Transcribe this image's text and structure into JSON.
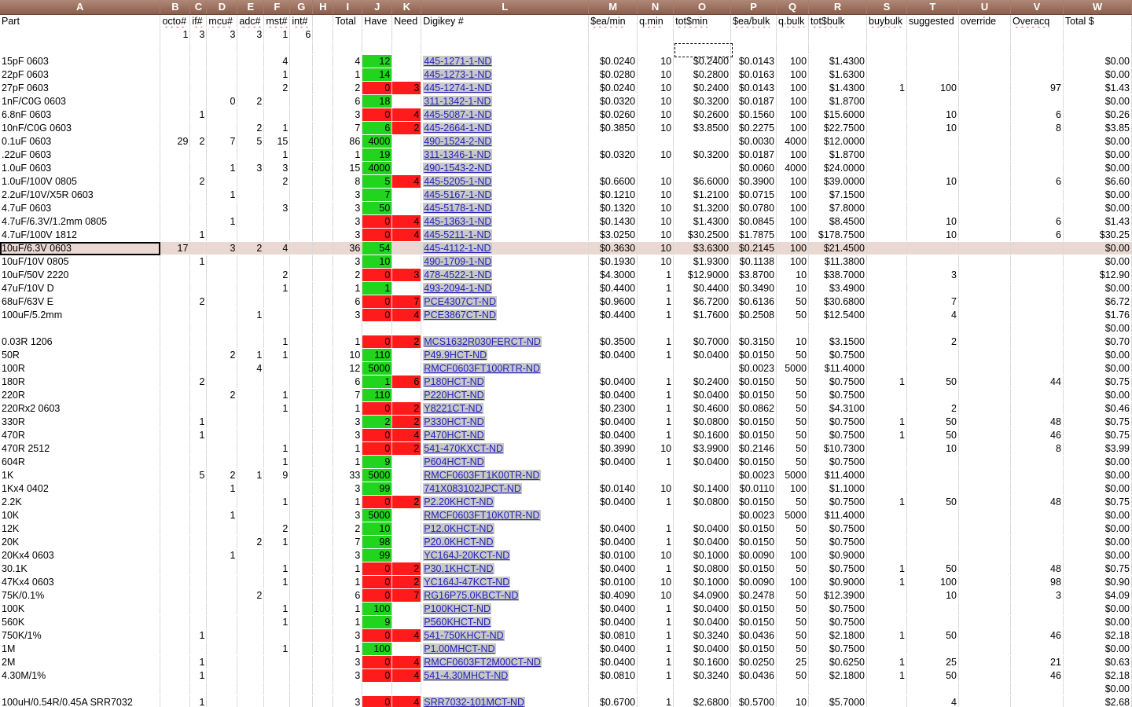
{
  "columns": [
    "A",
    "B",
    "C",
    "D",
    "E",
    "F",
    "G",
    "H",
    "I",
    "J",
    "K",
    "L",
    "M",
    "N",
    "O",
    "P",
    "Q",
    "R",
    "S",
    "T",
    "U",
    "V",
    "W"
  ],
  "header_row": [
    "Part",
    "octo#",
    "if#",
    "mcu#",
    "adc#",
    "mst#",
    "int#",
    "",
    "Total",
    "Have",
    "Need",
    "Digikey #",
    "$ea/min",
    "q.min",
    "tot$min",
    "$ea/bulk",
    "q.bulk",
    "tot$bulk",
    "buybulk",
    "suggested",
    "override",
    "Overacq",
    "Total $"
  ],
  "counts_row": [
    "",
    "1",
    "3",
    "3",
    "3",
    "1",
    "6",
    "",
    "",
    "",
    "",
    "",
    "",
    "",
    "",
    "",
    "",
    "",
    "",
    "",
    "",
    "",
    ""
  ],
  "blank_row_total": "",
  "rows": [
    [
      "15pF 0603",
      "",
      "",
      "",
      "",
      "4",
      "",
      "",
      "4",
      "12",
      "",
      "445-1271-1-ND",
      "$0.0240",
      "10",
      "$0.2400",
      "$0.0143",
      "100",
      "$1.4300",
      "",
      "",
      "",
      "",
      "$0.00"
    ],
    [
      "22pF 0603",
      "",
      "",
      "",
      "",
      "1",
      "",
      "",
      "1",
      "14",
      "",
      "445-1273-1-ND",
      "$0.0280",
      "10",
      "$0.2800",
      "$0.0163",
      "100",
      "$1.6300",
      "",
      "",
      "",
      "",
      "$0.00"
    ],
    [
      "27pF 0603",
      "",
      "",
      "",
      "",
      "2",
      "",
      "",
      "2",
      "0",
      "3",
      "445-1274-1-ND",
      "$0.0240",
      "10",
      "$0.2400",
      "$0.0143",
      "100",
      "$1.4300",
      "1",
      "100",
      "",
      "97",
      "$1.43"
    ],
    [
      "1nF/C0G 0603",
      "",
      "",
      "0",
      "2",
      "",
      "",
      "",
      "6",
      "18",
      "",
      "311-1342-1-ND",
      "$0.0320",
      "10",
      "$0.3200",
      "$0.0187",
      "100",
      "$1.8700",
      "",
      "",
      "",
      "",
      "$0.00"
    ],
    [
      "6.8nF 0603",
      "",
      "1",
      "",
      "",
      "",
      "",
      "",
      "3",
      "0",
      "4",
      "445-5087-1-ND",
      "$0.0260",
      "10",
      "$0.2600",
      "$0.1560",
      "100",
      "$15.6000",
      "",
      "10",
      "",
      "6",
      "$0.26"
    ],
    [
      "10nF/C0G 0603",
      "",
      "",
      "",
      "2",
      "1",
      "",
      "",
      "7",
      "6",
      "2",
      "445-2664-1-ND",
      "$0.3850",
      "10",
      "$3.8500",
      "$0.2275",
      "100",
      "$22.7500",
      "",
      "10",
      "",
      "8",
      "$3.85"
    ],
    [
      "0.1uF 0603",
      "29",
      "2",
      "7",
      "5",
      "15",
      "",
      "",
      "86",
      "4000",
      "",
      "490-1524-2-ND",
      "",
      "",
      "",
      "$0.0030",
      "4000",
      "$12.0000",
      "",
      "",
      "",
      "",
      "$0.00"
    ],
    [
      ".22uF 0603",
      "",
      "",
      "",
      "",
      "1",
      "",
      "",
      "1",
      "19",
      "",
      "311-1346-1-ND",
      "$0.0320",
      "10",
      "$0.3200",
      "$0.0187",
      "100",
      "$1.8700",
      "",
      "",
      "",
      "",
      "$0.00"
    ],
    [
      "1.0uF 0603",
      "",
      "",
      "1",
      "3",
      "3",
      "",
      "",
      "15",
      "4000",
      "",
      "490-1543-2-ND",
      "",
      "",
      "",
      "$0.0060",
      "4000",
      "$24.0000",
      "",
      "",
      "",
      "",
      "$0.00"
    ],
    [
      "1.0uF/100V 0805",
      "",
      "2",
      "",
      "",
      "2",
      "",
      "",
      "8",
      "5",
      "4",
      "445-5205-1-ND",
      "$0.6600",
      "10",
      "$6.6000",
      "$0.3900",
      "100",
      "$39.0000",
      "",
      "10",
      "",
      "6",
      "$6.60"
    ],
    [
      "2.2uF/10V/X5R 0603",
      "",
      "",
      "1",
      "",
      "",
      "",
      "",
      "3",
      "7",
      "",
      "445-5167-1-ND",
      "$0.1210",
      "10",
      "$1.2100",
      "$0.0715",
      "100",
      "$7.1500",
      "",
      "",
      "",
      "",
      "$0.00"
    ],
    [
      "4.7uF 0603",
      "",
      "",
      "",
      "",
      "3",
      "",
      "",
      "3",
      "50",
      "",
      "445-5178-1-ND",
      "$0.1320",
      "10",
      "$1.3200",
      "$0.0780",
      "100",
      "$7.8000",
      "",
      "",
      "",
      "",
      "$0.00"
    ],
    [
      "4.7uF/6.3V/1.2mm 0805",
      "",
      "",
      "1",
      "",
      "",
      "",
      "",
      "3",
      "0",
      "4",
      "445-1363-1-ND",
      "$0.1430",
      "10",
      "$1.4300",
      "$0.0845",
      "100",
      "$8.4500",
      "",
      "10",
      "",
      "6",
      "$1.43"
    ],
    [
      "4.7uF/100V 1812",
      "",
      "1",
      "",
      "",
      "",
      "",
      "",
      "3",
      "0",
      "4",
      "445-5211-1-ND",
      "$3.0250",
      "10",
      "$30.2500",
      "$1.7875",
      "100",
      "$178.7500",
      "",
      "10",
      "",
      "6",
      "$30.25"
    ],
    [
      "10uF/6.3V 0603",
      "17",
      "",
      "3",
      "2",
      "4",
      "",
      "",
      "36",
      "54",
      "",
      "445-4112-1-ND",
      "$0.3630",
      "10",
      "$3.6300",
      "$0.2145",
      "100",
      "$21.4500",
      "",
      "",
      "",
      "",
      "$0.00"
    ],
    [
      "10uF/10V 0805",
      "",
      "1",
      "",
      "",
      "",
      "",
      "",
      "3",
      "10",
      "",
      "490-1709-1-ND",
      "$0.1930",
      "10",
      "$1.9300",
      "$0.1138",
      "100",
      "$11.3800",
      "",
      "",
      "",
      "",
      "$0.00"
    ],
    [
      "10uF/50V 2220",
      "",
      "",
      "",
      "",
      "2",
      "",
      "",
      "2",
      "0",
      "3",
      "478-4522-1-ND",
      "$4.3000",
      "1",
      "$12.9000",
      "$3.8700",
      "10",
      "$38.7000",
      "",
      "3",
      "",
      "",
      "$12.90"
    ],
    [
      "47uF/10V D",
      "",
      "",
      "",
      "",
      "1",
      "",
      "",
      "1",
      "1",
      "",
      "493-2094-1-ND",
      "$0.4400",
      "1",
      "$0.4400",
      "$0.3490",
      "10",
      "$3.4900",
      "",
      "",
      "",
      "",
      "$0.00"
    ],
    [
      "68uF/63V E",
      "",
      "2",
      "",
      "",
      "",
      "",
      "",
      "6",
      "0",
      "7",
      "PCE4307CT-ND",
      "$0.9600",
      "1",
      "$6.7200",
      "$0.6136",
      "50",
      "$30.6800",
      "",
      "7",
      "",
      "",
      "$6.72"
    ],
    [
      "100uF/5.2mm",
      "",
      "",
      "",
      "1",
      "",
      "",
      "",
      "3",
      "0",
      "4",
      "PCE3867CT-ND",
      "$0.4400",
      "1",
      "$1.7600",
      "$0.2508",
      "50",
      "$12.5400",
      "",
      "4",
      "",
      "",
      "$1.76"
    ],
    [
      "",
      "",
      "",
      "",
      "",
      "",
      "",
      "",
      "",
      "",
      "",
      "",
      "",
      "",
      "",
      "",
      "",
      "",
      "",
      "",
      "",
      "",
      "$0.00"
    ],
    [
      "0.03R 1206",
      "",
      "",
      "",
      "",
      "1",
      "",
      "",
      "1",
      "0",
      "2",
      "MCS1632R030FERCT-ND",
      "$0.3500",
      "1",
      "$0.7000",
      "$0.3150",
      "10",
      "$3.1500",
      "",
      "2",
      "",
      "",
      "$0.70"
    ],
    [
      "50R",
      "",
      "",
      "2",
      "1",
      "1",
      "",
      "",
      "10",
      "110",
      "",
      "P49.9HCT-ND",
      "$0.0400",
      "1",
      "$0.0400",
      "$0.0150",
      "50",
      "$0.7500",
      "",
      "",
      "",
      "",
      "$0.00"
    ],
    [
      "100R",
      "",
      "",
      "",
      "4",
      "",
      "",
      "",
      "12",
      "5000",
      "",
      "RMCF0603FT100RTR-ND",
      "",
      "",
      "",
      "$0.0023",
      "5000",
      "$11.4000",
      "",
      "",
      "",
      "",
      "$0.00"
    ],
    [
      "180R",
      "",
      "2",
      "",
      "",
      "",
      "",
      "",
      "6",
      "1",
      "6",
      "P180HCT-ND",
      "$0.0400",
      "1",
      "$0.2400",
      "$0.0150",
      "50",
      "$0.7500",
      "1",
      "50",
      "",
      "44",
      "$0.75"
    ],
    [
      "220R",
      "",
      "",
      "2",
      "",
      "1",
      "",
      "",
      "7",
      "110",
      "",
      "P220HCT-ND",
      "$0.0400",
      "1",
      "$0.0400",
      "$0.0150",
      "50",
      "$0.7500",
      "",
      "",
      "",
      "",
      "$0.00"
    ],
    [
      "220Rx2 0603",
      "",
      "",
      "",
      "",
      "1",
      "",
      "",
      "1",
      "0",
      "2",
      "Y8221CT-ND",
      "$0.2300",
      "1",
      "$0.4600",
      "$0.0862",
      "50",
      "$4.3100",
      "",
      "2",
      "",
      "",
      "$0.46"
    ],
    [
      "330R",
      "",
      "1",
      "",
      "",
      "",
      "",
      "",
      "3",
      "2",
      "2",
      "P330HCT-ND",
      "$0.0400",
      "1",
      "$0.0800",
      "$0.0150",
      "50",
      "$0.7500",
      "1",
      "50",
      "",
      "48",
      "$0.75"
    ],
    [
      "470R",
      "",
      "1",
      "",
      "",
      "",
      "",
      "",
      "3",
      "0",
      "4",
      "P470HCT-ND",
      "$0.0400",
      "1",
      "$0.1600",
      "$0.0150",
      "50",
      "$0.7500",
      "1",
      "50",
      "",
      "46",
      "$0.75"
    ],
    [
      "470R 2512",
      "",
      "",
      "",
      "",
      "1",
      "",
      "",
      "1",
      "0",
      "2",
      "541-470KXCT-ND",
      "$0.3990",
      "10",
      "$3.9900",
      "$0.2146",
      "50",
      "$10.7300",
      "",
      "10",
      "",
      "8",
      "$3.99"
    ],
    [
      "604R",
      "",
      "",
      "",
      "",
      "1",
      "",
      "",
      "1",
      "9",
      "",
      "P604HCT-ND",
      "$0.0400",
      "1",
      "$0.0400",
      "$0.0150",
      "50",
      "$0.7500",
      "",
      "",
      "",
      "",
      "$0.00"
    ],
    [
      "1K",
      "",
      "5",
      "2",
      "1",
      "9",
      "",
      "",
      "33",
      "5000",
      "",
      "RMCF0603FT1K00TR-ND",
      "",
      "",
      "",
      "$0.0023",
      "5000",
      "$11.4000",
      "",
      "",
      "",
      "",
      "$0.00"
    ],
    [
      "1Kx4 0402",
      "",
      "",
      "1",
      "",
      "",
      "",
      "",
      "3",
      "99",
      "",
      "741X083102JPCT-ND",
      "$0.0140",
      "10",
      "$0.1400",
      "$0.0110",
      "100",
      "$1.1000",
      "",
      "",
      "",
      "",
      "$0.00"
    ],
    [
      "2.2K",
      "",
      "",
      "",
      "",
      "1",
      "",
      "",
      "1",
      "0",
      "2",
      "P2.20KHCT-ND",
      "$0.0400",
      "1",
      "$0.0800",
      "$0.0150",
      "50",
      "$0.7500",
      "1",
      "50",
      "",
      "48",
      "$0.75"
    ],
    [
      "10K",
      "",
      "",
      "1",
      "",
      "",
      "",
      "",
      "3",
      "5000",
      "",
      "RMCF0603FT10K0TR-ND",
      "",
      "",
      "",
      "$0.0023",
      "5000",
      "$11.4000",
      "",
      "",
      "",
      "",
      "$0.00"
    ],
    [
      "12K",
      "",
      "",
      "",
      "",
      "2",
      "",
      "",
      "2",
      "10",
      "",
      "P12.0KHCT-ND",
      "$0.0400",
      "1",
      "$0.0400",
      "$0.0150",
      "50",
      "$0.7500",
      "",
      "",
      "",
      "",
      "$0.00"
    ],
    [
      "20K",
      "",
      "",
      "",
      "2",
      "1",
      "",
      "",
      "7",
      "98",
      "",
      "P20.0KHCT-ND",
      "$0.0400",
      "1",
      "$0.0400",
      "$0.0150",
      "50",
      "$0.7500",
      "",
      "",
      "",
      "",
      "$0.00"
    ],
    [
      "20Kx4 0603",
      "",
      "",
      "1",
      "",
      "",
      "",
      "",
      "3",
      "99",
      "",
      "YC164J-20KCT-ND",
      "$0.0100",
      "10",
      "$0.1000",
      "$0.0090",
      "100",
      "$0.9000",
      "",
      "",
      "",
      "",
      "$0.00"
    ],
    [
      "30.1K",
      "",
      "",
      "",
      "",
      "1",
      "",
      "",
      "1",
      "0",
      "2",
      "P30.1KHCT-ND",
      "$0.0400",
      "1",
      "$0.0800",
      "$0.0150",
      "50",
      "$0.7500",
      "1",
      "50",
      "",
      "48",
      "$0.75"
    ],
    [
      "47Kx4 0603",
      "",
      "",
      "",
      "",
      "1",
      "",
      "",
      "1",
      "0",
      "2",
      "YC164J-47KCT-ND",
      "$0.0100",
      "10",
      "$0.1000",
      "$0.0090",
      "100",
      "$0.9000",
      "1",
      "100",
      "",
      "98",
      "$0.90"
    ],
    [
      "75K/0.1%",
      "",
      "",
      "",
      "2",
      "",
      "",
      "",
      "6",
      "0",
      "7",
      "RG16P75.0KBCT-ND",
      "$0.4090",
      "10",
      "$4.0900",
      "$0.2478",
      "50",
      "$12.3900",
      "",
      "10",
      "",
      "3",
      "$4.09"
    ],
    [
      "100K",
      "",
      "",
      "",
      "",
      "1",
      "",
      "",
      "1",
      "100",
      "",
      "P100KHCT-ND",
      "$0.0400",
      "1",
      "$0.0400",
      "$0.0150",
      "50",
      "$0.7500",
      "",
      "",
      "",
      "",
      "$0.00"
    ],
    [
      "560K",
      "",
      "",
      "",
      "",
      "1",
      "",
      "",
      "1",
      "9",
      "",
      "P560KHCT-ND",
      "$0.0400",
      "1",
      "$0.0400",
      "$0.0150",
      "50",
      "$0.7500",
      "",
      "",
      "",
      "",
      "$0.00"
    ],
    [
      "750K/1%",
      "",
      "1",
      "",
      "",
      "",
      "",
      "",
      "3",
      "0",
      "4",
      "541-750KHCT-ND",
      "$0.0810",
      "1",
      "$0.3240",
      "$0.0436",
      "50",
      "$2.1800",
      "1",
      "50",
      "",
      "46",
      "$2.18"
    ],
    [
      "1M",
      "",
      "",
      "",
      "",
      "1",
      "",
      "",
      "1",
      "100",
      "",
      "P1.00MHCT-ND",
      "$0.0400",
      "1",
      "$0.0400",
      "$0.0150",
      "50",
      "$0.7500",
      "",
      "",
      "",
      "",
      "$0.00"
    ],
    [
      "2M",
      "",
      "1",
      "",
      "",
      "",
      "",
      "",
      "3",
      "0",
      "4",
      "RMCF0603FT2M00CT-ND",
      "$0.0400",
      "1",
      "$0.1600",
      "$0.0250",
      "25",
      "$0.6250",
      "1",
      "25",
      "",
      "21",
      "$0.63"
    ],
    [
      "4.30M/1%",
      "",
      "1",
      "",
      "",
      "",
      "",
      "",
      "3",
      "0",
      "4",
      "541-4.30MHCT-ND",
      "$0.0810",
      "1",
      "$0.3240",
      "$0.0436",
      "50",
      "$2.1800",
      "1",
      "50",
      "",
      "46",
      "$2.18"
    ],
    [
      "",
      "",
      "",
      "",
      "",
      "",
      "",
      "",
      "",
      "",
      "",
      "",
      "",
      "",
      "",
      "",
      "",
      "",
      "",
      "",
      "",
      "",
      "$0.00"
    ],
    [
      "100uH/0.54R/0.45A SRR7032",
      "",
      "1",
      "",
      "",
      "",
      "",
      "",
      "3",
      "0",
      "4",
      "SRR7032-101MCT-ND",
      "$0.6700",
      "1",
      "$2.6800",
      "$0.5700",
      "10",
      "$5.7000",
      "",
      "4",
      "",
      "",
      "$2.68"
    ]
  ],
  "selected_row_index": 14,
  "colors": {
    "have_ok": "#21d51e",
    "need_red": "#ff1b1b",
    "header_bg": "#8c5e4c",
    "selected_row": "#ead8d2"
  }
}
